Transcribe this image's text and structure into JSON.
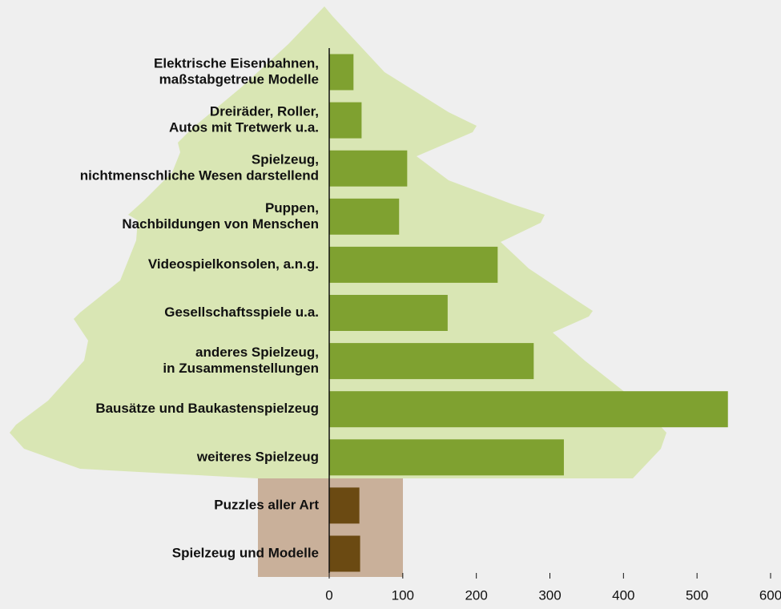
{
  "chart_data": {
    "type": "bar",
    "orientation": "horizontal",
    "categories": [
      [
        "Elektrische Eisenbahnen,",
        "maßstabgetreue Modelle"
      ],
      [
        "Dreiräder, Roller,",
        "Autos mit Tretwerk u.a."
      ],
      [
        "Spielzeug,",
        "nichtmenschliche Wesen darstellend"
      ],
      [
        "Puppen,",
        "Nachbildungen von Menschen"
      ],
      [
        "Videospielkonsolen, a.n.g."
      ],
      [
        "Gesellschaftsspiele u.a."
      ],
      [
        "anderes Spielzeug,",
        "in Zusammenstellungen"
      ],
      [
        "Bausätze und Baukastenspielzeug"
      ],
      [
        "weiteres Spielzeug"
      ],
      [
        "Puzzles aller Art"
      ],
      [
        "Spielzeug und Modelle"
      ]
    ],
    "values": [
      33,
      44,
      106,
      95,
      229,
      161,
      278,
      542,
      319,
      41,
      42
    ],
    "colors": [
      "#7fa130",
      "#7fa130",
      "#7fa130",
      "#7fa130",
      "#7fa130",
      "#7fa130",
      "#7fa130",
      "#7fa130",
      "#7fa130",
      "#6b4a12",
      "#6b4a12"
    ],
    "xlim": [
      0,
      600
    ],
    "xticks": [
      0,
      100,
      200,
      300,
      400,
      500,
      600
    ]
  }
}
